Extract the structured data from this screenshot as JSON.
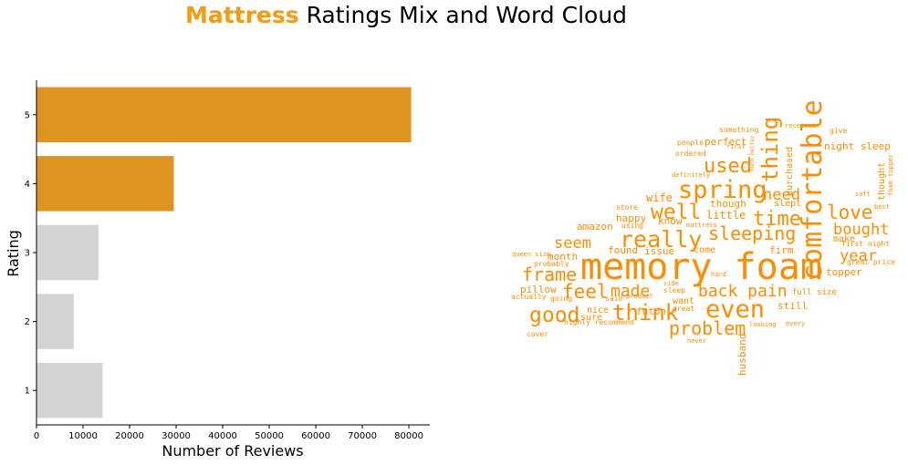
{
  "title": {
    "highlight": "Mattress",
    "rest": " Ratings Mix and Word Cloud"
  },
  "colors": {
    "highlight": "#f59b12",
    "bar_high": "#de9420",
    "bar_low": "#d3d3d3",
    "cloud_text": "#ff8c00",
    "axis": "#000000"
  },
  "chart_data": [
    {
      "type": "bar",
      "orientation": "horizontal",
      "categories": [
        "1",
        "2",
        "3",
        "4",
        "5"
      ],
      "values": [
        14200,
        8000,
        13300,
        29500,
        80500
      ],
      "highlighted_categories": [
        "4",
        "5"
      ],
      "xlabel": "Number of Reviews",
      "ylabel": "Rating",
      "xlim": [
        0,
        84500
      ],
      "xticks": [
        0,
        10000,
        20000,
        30000,
        40000,
        50000,
        60000,
        70000,
        80000
      ],
      "grid": false
    },
    {
      "type": "wordcloud",
      "words": [
        "memory foam",
        "comfortable",
        "spring",
        "really",
        "even",
        "think",
        "problem",
        "frame",
        "good",
        "well",
        "sleeping",
        "love",
        "used",
        "thing",
        "time",
        "feel",
        "made",
        "back pain",
        "seem",
        "need",
        "bought",
        "year",
        "little",
        "though",
        "wife",
        "happy",
        "know",
        "amazon",
        "month",
        "found",
        "issue",
        "come",
        "firm",
        "pillow",
        "sure",
        "nice",
        "perfect",
        "night sleep",
        "purchased",
        "topper",
        "make",
        "first night",
        "husband",
        "futon",
        "still",
        "want",
        "slept",
        "thought",
        "full size",
        "highly recommend",
        "great price",
        "something",
        "people",
        "ordered",
        "definitely",
        "queen size",
        "probably",
        "actually",
        "cover",
        "going",
        "said",
        "product",
        "sleep",
        "store",
        "using",
        "great",
        "never",
        "looking",
        "received",
        "give",
        "soft",
        "hard",
        "best",
        "first",
        "side",
        "mattress",
        "every",
        "much better",
        "foam topper"
      ]
    }
  ]
}
